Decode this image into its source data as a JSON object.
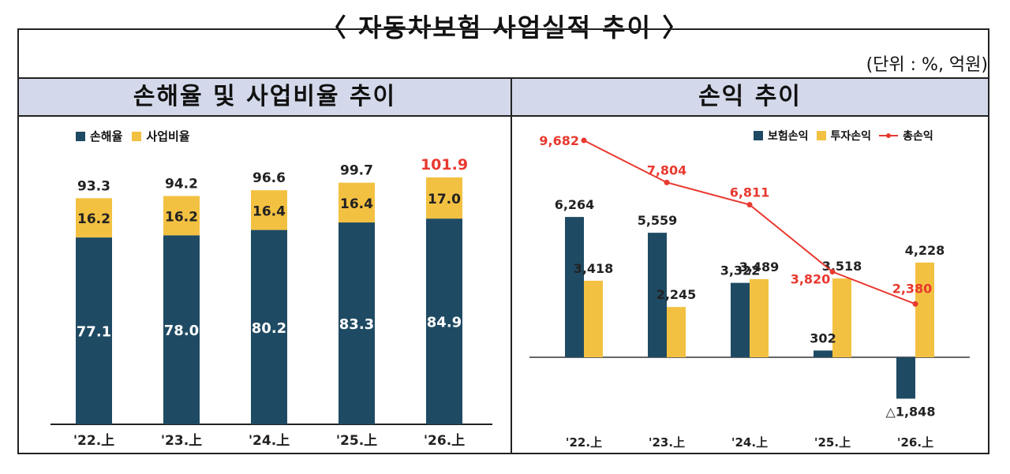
{
  "header": {
    "title": "〈 자동차보험 사업실적 추이 〉",
    "unit": "(단위 : %, 억원)"
  },
  "left_panel": {
    "title": "손해율 및 사업비율 추이"
  },
  "right_panel": {
    "title": "손익 추이"
  },
  "colors": {
    "navy": "#1f4a63",
    "gold": "#f3c142",
    "red": "#e8392f",
    "header_bg": "#d3d9ea"
  },
  "chart_data": [
    {
      "type": "bar",
      "stacked": true,
      "categories": [
        "'22.上",
        "'23.上",
        "'24.上",
        "'25.上",
        "'26.上"
      ],
      "series": [
        {
          "name": "손해율",
          "values": [
            77.1,
            78.0,
            80.2,
            83.3,
            84.9
          ]
        },
        {
          "name": "사업비율",
          "values": [
            16.2,
            16.2,
            16.4,
            16.4,
            17.0
          ]
        }
      ],
      "totals": [
        "93.3",
        "94.2",
        "96.6",
        "99.7",
        "101.9"
      ],
      "highlight_total_index": 4,
      "legend": "top-left",
      "ylim": [
        0,
        110
      ]
    },
    {
      "type": "bar",
      "categories": [
        "'22.上",
        "'23.上",
        "'24.上",
        "'25.上",
        "'26.上"
      ],
      "series": [
        {
          "name": "보험손익",
          "values": [
            6264,
            5559,
            3322,
            302,
            -1848
          ],
          "labels": [
            "6,264",
            "5,559",
            "3,322",
            "302",
            "△1,848"
          ]
        },
        {
          "name": "투자손익",
          "values": [
            3418,
            2245,
            3489,
            3518,
            4228
          ],
          "labels": [
            "3,418",
            "2,245",
            "3,489",
            "3,518",
            "4,228"
          ]
        },
        {
          "name": "총손익",
          "type": "line",
          "values": [
            9682,
            7804,
            6811,
            3820,
            2380
          ],
          "labels": [
            "9,682",
            "7,804",
            "6,811",
            "3,820",
            "2,380"
          ]
        }
      ],
      "legend": "top-right",
      "ylim": [
        -2700,
        10500
      ]
    }
  ]
}
